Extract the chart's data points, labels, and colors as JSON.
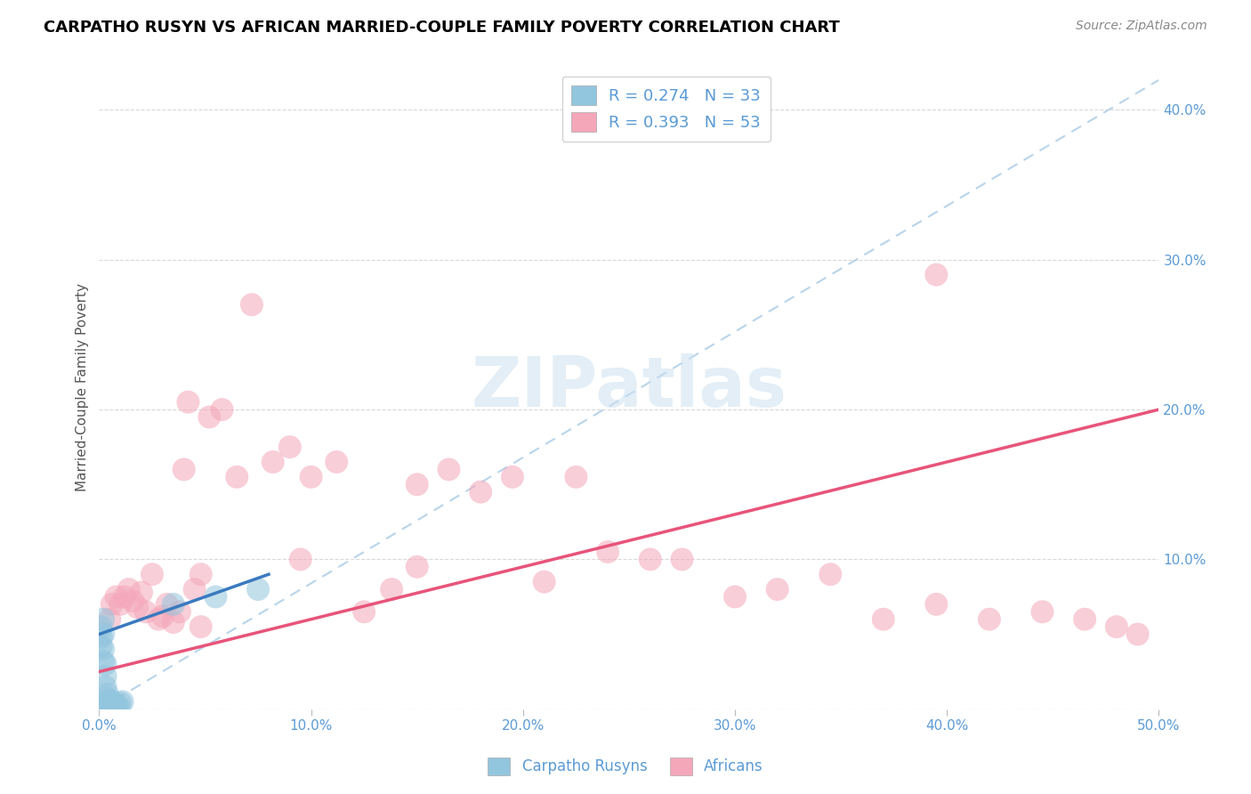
{
  "title": "CARPATHO RUSYN VS AFRICAN MARRIED-COUPLE FAMILY POVERTY CORRELATION CHART",
  "source": "Source: ZipAtlas.com",
  "ylabel": "Married-Couple Family Poverty",
  "xlim": [
    0.0,
    0.5
  ],
  "ylim": [
    0.0,
    0.43
  ],
  "xticks": [
    0.0,
    0.1,
    0.2,
    0.3,
    0.4,
    0.5
  ],
  "yticks": [
    0.0,
    0.1,
    0.2,
    0.3,
    0.4
  ],
  "xtick_labels": [
    "0.0%",
    "10.0%",
    "20.0%",
    "30.0%",
    "40.0%",
    "50.0%"
  ],
  "ytick_labels": [
    "",
    "10.0%",
    "20.0%",
    "30.0%",
    "40.0%"
  ],
  "watermark": "ZIPatlas",
  "legend_r1": "R = 0.274   N = 33",
  "legend_r2": "R = 0.393   N = 53",
  "legend_label1": "Carpatho Rusyns",
  "legend_label2": "Africans",
  "color_blue": "#92c5de",
  "color_pink": "#f4a7b9",
  "color_blue_line": "#3a7abf",
  "color_pink_line": "#e8547a",
  "color_dashed_line": "#b8d4ea",
  "blue_scatter_x": [
    0.001,
    0.001,
    0.001,
    0.002,
    0.002,
    0.002,
    0.002,
    0.003,
    0.003,
    0.003,
    0.003,
    0.004,
    0.004,
    0.004,
    0.004,
    0.005,
    0.005,
    0.005,
    0.005,
    0.006,
    0.006,
    0.006,
    0.007,
    0.007,
    0.007,
    0.008,
    0.008,
    0.009,
    0.01,
    0.011,
    0.035,
    0.055,
    0.075
  ],
  "blue_scatter_y": [
    0.055,
    0.048,
    0.042,
    0.06,
    0.05,
    0.04,
    0.032,
    0.03,
    0.022,
    0.015,
    0.008,
    0.01,
    0.005,
    0.003,
    0.0,
    0.006,
    0.003,
    0.001,
    0.0,
    0.004,
    0.002,
    0.0,
    0.004,
    0.003,
    0.001,
    0.003,
    0.001,
    0.002,
    0.004,
    0.005,
    0.07,
    0.075,
    0.08
  ],
  "pink_scatter_x": [
    0.005,
    0.006,
    0.008,
    0.01,
    0.012,
    0.014,
    0.016,
    0.018,
    0.02,
    0.022,
    0.025,
    0.028,
    0.03,
    0.032,
    0.035,
    0.038,
    0.04,
    0.042,
    0.045,
    0.048,
    0.052,
    0.058,
    0.065,
    0.072,
    0.082,
    0.09,
    0.1,
    0.112,
    0.125,
    0.138,
    0.15,
    0.165,
    0.18,
    0.195,
    0.21,
    0.225,
    0.24,
    0.26,
    0.275,
    0.3,
    0.32,
    0.345,
    0.37,
    0.395,
    0.42,
    0.445,
    0.465,
    0.48,
    0.49,
    0.048,
    0.095,
    0.15,
    0.395
  ],
  "pink_scatter_y": [
    0.06,
    0.07,
    0.075,
    0.07,
    0.075,
    0.08,
    0.072,
    0.068,
    0.078,
    0.065,
    0.09,
    0.06,
    0.062,
    0.07,
    0.058,
    0.065,
    0.16,
    0.205,
    0.08,
    0.09,
    0.195,
    0.2,
    0.155,
    0.27,
    0.165,
    0.175,
    0.155,
    0.165,
    0.065,
    0.08,
    0.15,
    0.16,
    0.145,
    0.155,
    0.085,
    0.155,
    0.105,
    0.1,
    0.1,
    0.075,
    0.08,
    0.09,
    0.06,
    0.07,
    0.06,
    0.065,
    0.06,
    0.055,
    0.05,
    0.055,
    0.1,
    0.095,
    0.29
  ],
  "blue_line_x": [
    0.0,
    0.08
  ],
  "blue_line_y": [
    0.05,
    0.09
  ],
  "pink_line_x": [
    0.0,
    0.5
  ],
  "pink_line_y": [
    0.025,
    0.2
  ],
  "dashed_line_x": [
    0.0,
    0.5
  ],
  "dashed_line_y": [
    0.0,
    0.42
  ]
}
